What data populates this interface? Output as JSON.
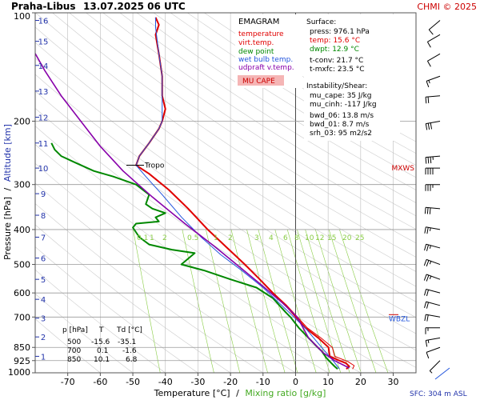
{
  "header": {
    "station": "Praha-Libus",
    "datetime": "13.07.2025 06 UTC",
    "credit": "CHMI © 2025"
  },
  "legend": {
    "title": "EMAGRAM",
    "items": [
      {
        "label": "temperature",
        "color": "#e00000"
      },
      {
        "label": "virt.temp.",
        "color": "#e00000"
      },
      {
        "label": "dew point",
        "color": "#008800"
      },
      {
        "label": "wet bulb temp.",
        "color": "#2255dd"
      },
      {
        "label": "udpraft v.temp.",
        "color": "#8800aa"
      }
    ],
    "mucape_label": "MU CAPE",
    "mucape_fill": "#f5b5b5"
  },
  "surface": {
    "title": "Surface:",
    "press": "press: 976.1 hPa",
    "temp": "temp: 15.6 °C",
    "dwpt": "dwpt: 12.9 °C",
    "tconv": "t-conv: 21.7 °C",
    "tmxfc": "t-mxfc: 23.5 °C"
  },
  "instability": {
    "title": "Instability/Shear:",
    "mu_cape": "mu_cape: 35 J/kg",
    "mu_cinh": "mu_cinh: -117 J/kg",
    "bwd_06": "bwd_06: 13.8 m/s",
    "bwd_01": "bwd_01: 8.7 m/s",
    "srh_03": "srh_03: 95 m2/s2"
  },
  "table": {
    "headers": [
      "p [hPa]",
      "T",
      "Td [°C]"
    ],
    "rows": [
      [
        "500",
        "-15.6",
        "-35.1"
      ],
      [
        "700",
        "0.1",
        "-1.6"
      ],
      [
        "850",
        "10.1",
        "6.8"
      ]
    ]
  },
  "labels": {
    "tropo": "Tropo",
    "mxws": "MXWS",
    "wbzl": "WBZL",
    "sfc": "SFC: 304 m ASL"
  },
  "colors": {
    "temperature": "#e00000",
    "dewpoint": "#008800",
    "wetbulb": "#2255dd",
    "parcel": "#8800aa",
    "altitude": "#2233aa",
    "mixing": "#88cc44",
    "isobar": "#999999",
    "isotherm": "#bbbbbb",
    "grid0": "#444444"
  },
  "chart_data": {
    "type": "line",
    "title": "Praha-Libus 13.07.2025 06 UTC",
    "xlabel": "Temperature [°C]",
    "xlabel_sep": "/",
    "xlabel2": "Mixing ratio [g/kg]",
    "ylabel": "Pressure [hPa]",
    "ylabel_sep": "/",
    "ylabel2": "Altitude [km]",
    "xlim": [
      -80,
      37
    ],
    "ylim": [
      1000,
      100
    ],
    "y_scale": "log",
    "x_ticks": [
      -70,
      -60,
      -50,
      -40,
      -30,
      -20,
      -10,
      0,
      10,
      20,
      30
    ],
    "pressure_ticks": [
      100,
      200,
      300,
      400,
      500,
      600,
      700,
      850,
      925,
      1000
    ],
    "grid_pressures": [
      200,
      300,
      400,
      500,
      600,
      700,
      850,
      925
    ],
    "altitude_ticks": [
      {
        "km": 1,
        "p": 900
      },
      {
        "km": 2,
        "p": 795
      },
      {
        "km": 3,
        "p": 705
      },
      {
        "km": 4,
        "p": 625
      },
      {
        "km": 5,
        "p": 550
      },
      {
        "km": 6,
        "p": 480
      },
      {
        "km": 7,
        "p": 420
      },
      {
        "km": 8,
        "p": 365
      },
      {
        "km": 9,
        "p": 318
      },
      {
        "km": 10,
        "p": 270
      },
      {
        "km": 11,
        "p": 230
      },
      {
        "km": 12,
        "p": 195
      },
      {
        "km": 13,
        "p": 165
      },
      {
        "km": 14,
        "p": 140
      },
      {
        "km": 15,
        "p": 120
      },
      {
        "km": 16,
        "p": 105
      }
    ],
    "mixing_ratio_labels": [
      "0.1",
      "1",
      "2",
      "0.5",
      "1",
      "2",
      "3",
      "4",
      "6",
      "8",
      "10",
      "12",
      "15",
      "20",
      "25"
    ],
    "series": [
      {
        "name": "temperature",
        "points": [
          [
            15.6,
            976
          ],
          [
            16.5,
            960
          ],
          [
            15.5,
            940
          ],
          [
            13.5,
            925
          ],
          [
            10.5,
            900
          ],
          [
            10.1,
            850
          ],
          [
            7,
            800
          ],
          [
            3,
            750
          ],
          [
            0.1,
            700
          ],
          [
            -3,
            650
          ],
          [
            -7,
            600
          ],
          [
            -11,
            550
          ],
          [
            -15.6,
            500
          ],
          [
            -21,
            450
          ],
          [
            -27,
            400
          ],
          [
            -33,
            350
          ],
          [
            -39,
            310
          ],
          [
            -45,
            280
          ],
          [
            -49,
            265
          ],
          [
            -48,
            250
          ],
          [
            -45,
            230
          ],
          [
            -42,
            210
          ],
          [
            -41,
            200
          ],
          [
            -40,
            185
          ],
          [
            -41,
            170
          ],
          [
            -41,
            150
          ],
          [
            -42,
            130
          ],
          [
            -43,
            115
          ],
          [
            -42,
            108
          ],
          [
            -43,
            103
          ]
        ]
      },
      {
        "name": "virt.temp.",
        "points": [
          [
            17.5,
            976
          ],
          [
            18,
            955
          ],
          [
            16,
            930
          ],
          [
            12,
            900
          ],
          [
            11.3,
            850
          ],
          [
            7.8,
            800
          ],
          [
            3.6,
            750
          ],
          [
            0.6,
            700
          ],
          [
            -2.7,
            650
          ],
          [
            -6.8,
            600
          ],
          [
            -10.9,
            550
          ],
          [
            -15.5,
            500
          ],
          [
            -20.9,
            450
          ],
          [
            -26.9,
            400
          ],
          [
            -32.9,
            350
          ],
          [
            -38.9,
            310
          ],
          [
            -44.9,
            280
          ],
          [
            -48.9,
            265
          ],
          [
            -47.9,
            250
          ],
          [
            -44.9,
            230
          ],
          [
            -41.9,
            210
          ],
          [
            -40.9,
            200
          ],
          [
            -39.9,
            185
          ],
          [
            -40.9,
            170
          ],
          [
            -40.9,
            150
          ],
          [
            -41.9,
            130
          ],
          [
            -42.9,
            115
          ],
          [
            -41.9,
            108
          ],
          [
            -42.9,
            103
          ]
        ]
      },
      {
        "name": "dew point",
        "points": [
          [
            12.9,
            976
          ],
          [
            12,
            960
          ],
          [
            11,
            940
          ],
          [
            9.5,
            910
          ],
          [
            8,
            870
          ],
          [
            6.8,
            850
          ],
          [
            4,
            800
          ],
          [
            1,
            750
          ],
          [
            -1.6,
            700
          ],
          [
            -3,
            680
          ],
          [
            -7,
            620
          ],
          [
            -12,
            580
          ],
          [
            -20,
            550
          ],
          [
            -28,
            520
          ],
          [
            -35.1,
            500
          ],
          [
            -31,
            465
          ],
          [
            -38,
            455
          ],
          [
            -45,
            440
          ],
          [
            -48,
            420
          ],
          [
            -50,
            395
          ],
          [
            -49,
            385
          ],
          [
            -42,
            380
          ],
          [
            -43,
            370
          ],
          [
            -40,
            360
          ],
          [
            -44,
            350
          ],
          [
            -46,
            340
          ],
          [
            -45,
            320
          ],
          [
            -49,
            300
          ],
          [
            -56,
            285
          ],
          [
            -62,
            275
          ],
          [
            -68,
            260
          ],
          [
            -72,
            250
          ],
          [
            -74,
            240
          ],
          [
            -75,
            230
          ]
        ]
      },
      {
        "name": "wet bulb temp.",
        "points": [
          [
            13.5,
            976
          ],
          [
            11.5,
            925
          ],
          [
            8,
            850
          ],
          [
            3.5,
            760
          ],
          [
            -0.5,
            700
          ],
          [
            -5,
            640
          ],
          [
            -10,
            580
          ],
          [
            -16.5,
            520
          ],
          [
            -23,
            470
          ],
          [
            -29,
            420
          ],
          [
            -35,
            370
          ],
          [
            -41,
            320
          ],
          [
            -46,
            285
          ],
          [
            -49,
            265
          ],
          [
            -48,
            250
          ],
          [
            -45,
            230
          ],
          [
            -42,
            210
          ],
          [
            -41,
            200
          ],
          [
            -41,
            175
          ],
          [
            -41,
            150
          ],
          [
            -42,
            130
          ],
          [
            -43,
            110
          ],
          [
            -43,
            103
          ]
        ]
      },
      {
        "name": "udpraft v.temp.",
        "points": [
          [
            16.5,
            970
          ],
          [
            12,
            925
          ],
          [
            8.5,
            880
          ],
          [
            4,
            800
          ],
          [
            0.5,
            700
          ],
          [
            -4,
            640
          ],
          [
            -10,
            575
          ],
          [
            -17,
            510
          ],
          [
            -25,
            445
          ],
          [
            -34,
            385
          ],
          [
            -44,
            325
          ],
          [
            -53,
            275
          ],
          [
            -60,
            235
          ],
          [
            -66,
            200
          ],
          [
            -72,
            170
          ],
          [
            -77,
            145
          ],
          [
            -81,
            125
          ]
        ]
      }
    ],
    "wind_barbs": [
      {
        "p": 925,
        "dir": 225,
        "kt": 5
      },
      {
        "p": 850,
        "dir": 250,
        "kt": 10
      },
      {
        "p": 800,
        "dir": 260,
        "kt": 15
      },
      {
        "p": 750,
        "dir": 270,
        "kt": 15
      },
      {
        "p": 700,
        "dir": 280,
        "kt": 20
      },
      {
        "p": 650,
        "dir": 285,
        "kt": 20
      },
      {
        "p": 600,
        "dir": 285,
        "kt": 20
      },
      {
        "p": 550,
        "dir": 290,
        "kt": 25
      },
      {
        "p": 500,
        "dir": 290,
        "kt": 25
      },
      {
        "p": 450,
        "dir": 285,
        "kt": 25
      },
      {
        "p": 400,
        "dir": 280,
        "kt": 25
      },
      {
        "p": 350,
        "dir": 275,
        "kt": 30
      },
      {
        "p": 300,
        "dir": 270,
        "kt": 35
      },
      {
        "p": 270,
        "dir": 270,
        "kt": 40
      },
      {
        "p": 250,
        "dir": 265,
        "kt": 35
      },
      {
        "p": 200,
        "dir": 260,
        "kt": 30
      },
      {
        "p": 170,
        "dir": 265,
        "kt": 20
      },
      {
        "p": 150,
        "dir": 250,
        "kt": 15
      },
      {
        "p": 130,
        "dir": 240,
        "kt": 10
      },
      {
        "p": 115,
        "dir": 240,
        "kt": 10
      },
      {
        "p": 105,
        "dir": 230,
        "kt": 10
      }
    ],
    "markers": {
      "tropo_p": 265,
      "mxws_p": 270,
      "wbzl_p": 700
    }
  }
}
